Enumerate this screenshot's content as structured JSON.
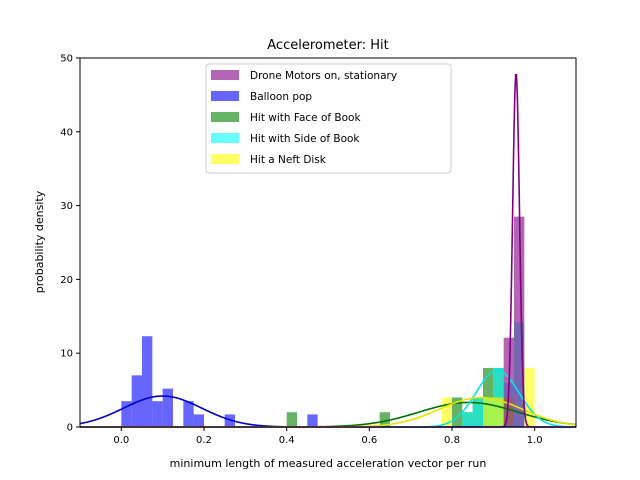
{
  "chart_data": {
    "type": "histogram_with_density",
    "title": "Accelerometer: Hit",
    "xlabel": "minimum length of measured acceleration vector per run",
    "ylabel": "probability density",
    "xlim": [
      -0.1,
      1.1
    ],
    "ylim": [
      0,
      50
    ],
    "xticks": [
      0.0,
      0.2,
      0.4,
      0.6,
      0.8,
      1.0
    ],
    "xtick_labels": [
      "0.0",
      "0.2",
      "0.4",
      "0.6",
      "0.8",
      "1.0"
    ],
    "yticks": [
      0,
      10,
      20,
      30,
      40,
      50
    ],
    "ytick_labels": [
      "0",
      "10",
      "20",
      "30",
      "40",
      "50"
    ],
    "grid": false,
    "legend_position": "top-center",
    "bin_width": 0.025,
    "series": [
      {
        "name": "Balloon pop",
        "color": "#0000ff",
        "curve_color": "#0000cc",
        "bins": [
          [
            0.0,
            3.5
          ],
          [
            0.025,
            7.0
          ],
          [
            0.05,
            12.3
          ],
          [
            0.075,
            3.5
          ],
          [
            0.1,
            5.2
          ],
          [
            0.15,
            3.5
          ],
          [
            0.175,
            1.7
          ],
          [
            0.25,
            1.7
          ],
          [
            0.45,
            1.7
          ]
        ],
        "density": {
          "mu": 0.1,
          "sigma": 0.095,
          "scale": 1.0
        }
      },
      {
        "name": "Hit with Face of Book",
        "color": "#008000",
        "curve_color": "#007000",
        "bins": [
          [
            0.4,
            2.0
          ],
          [
            0.625,
            2.0
          ],
          [
            0.8,
            4.0
          ],
          [
            0.825,
            2.0
          ],
          [
            0.85,
            4.0
          ],
          [
            0.875,
            8.0
          ],
          [
            0.9,
            8.0
          ],
          [
            0.925,
            4.0
          ]
        ],
        "density": {
          "mu": 0.84,
          "sigma": 0.12,
          "scale": 1.0
        }
      },
      {
        "name": "Hit with Side of Book",
        "color": "#00ffff",
        "curve_color": "#00e5e5",
        "bins": [
          [
            0.825,
            2.0
          ],
          [
            0.85,
            4.0
          ],
          [
            0.875,
            4.0
          ],
          [
            0.9,
            8.0
          ],
          [
            0.925,
            6.0
          ],
          [
            0.95,
            14.2
          ]
        ],
        "density": {
          "mu": 0.91,
          "sigma": 0.052,
          "scale": 1.0
        }
      },
      {
        "name": "Hit a Neft Disk",
        "color": "#ffff00",
        "curve_color": "#e5e500",
        "bins": [
          [
            0.775,
            4.0
          ],
          [
            0.875,
            4.0
          ],
          [
            0.9,
            4.0
          ],
          [
            0.925,
            4.0
          ],
          [
            0.975,
            8.0
          ]
        ],
        "density": {
          "mu": 0.87,
          "sigma": 0.1,
          "scale": 1.0
        }
      },
      {
        "name": "Drone Motors on, stationary",
        "color": "#800080",
        "curve_color": "#800080",
        "bins": [
          [
            0.925,
            12.1
          ],
          [
            0.95,
            28.5
          ]
        ],
        "density": {
          "mu": 0.955,
          "sigma": 0.0083,
          "scale": 1.0
        }
      }
    ],
    "legend_order": [
      "Drone Motors on, stationary",
      "Balloon pop",
      "Hit with Face of Book",
      "Hit with Side of Book",
      "Hit a Neft Disk"
    ]
  }
}
